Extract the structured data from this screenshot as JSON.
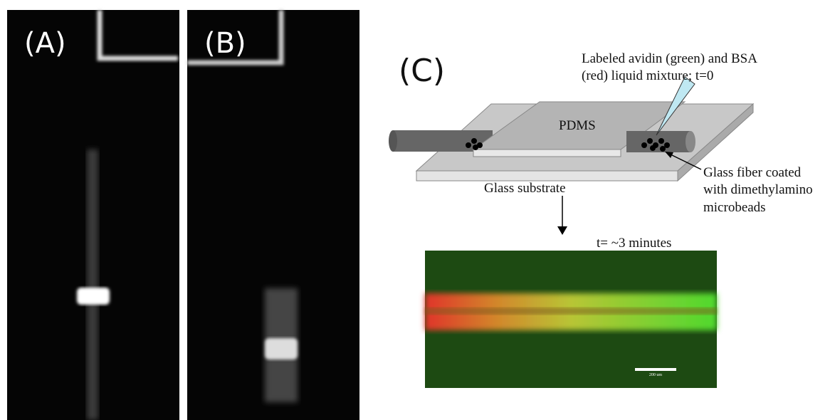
{
  "panels": [
    {
      "label": "(A)"
    },
    {
      "label": "(B)"
    },
    {
      "label": "(C)",
      "needle_note": [
        "Labeled avidin (green) and BSA",
        "(red) liquid mixture; t=0"
      ],
      "pdms": "PDMS",
      "fiber_note": [
        "Glass fiber coated",
        "with dimethylamino",
        "microbeads"
      ],
      "substrate": "Glass substrate",
      "time": "t= ~3 minutes",
      "scale_bar": "200 um"
    }
  ]
}
